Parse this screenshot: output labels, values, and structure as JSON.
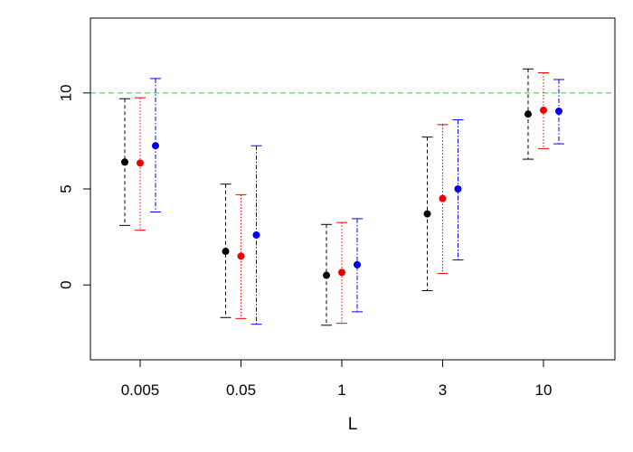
{
  "chart_data": {
    "type": "scatter",
    "title": "",
    "xlabel": "L",
    "ylabel": "",
    "categories": [
      "0.005",
      "0.05",
      "1",
      "3",
      "10"
    ],
    "ylim": [
      -3.9,
      13.9
    ],
    "yticks": [
      0,
      5,
      10
    ],
    "grid": false,
    "reference_line": {
      "y": 10,
      "color": "#33cc33",
      "style": "dashed"
    },
    "series": [
      {
        "color": "#000000",
        "line_style": "dashed",
        "points": [
          {
            "x": "0.005",
            "y": 6.4,
            "lower": 3.1,
            "upper": 9.7
          },
          {
            "x": "0.05",
            "y": 1.75,
            "lower": -1.7,
            "upper": 5.25
          },
          {
            "x": "1",
            "y": 0.5,
            "lower": -2.1,
            "upper": 3.15
          },
          {
            "x": "3",
            "y": 3.7,
            "lower": -0.3,
            "upper": 7.7
          },
          {
            "x": "10",
            "y": 8.9,
            "lower": 6.55,
            "upper": 11.25
          }
        ]
      },
      {
        "color": "#ee0000",
        "line_style": "dotted",
        "points": [
          {
            "x": "0.005",
            "y": 6.35,
            "lower": 2.85,
            "upper": 9.75
          },
          {
            "x": "0.05",
            "y": 1.5,
            "lower": -1.75,
            "upper": 4.7
          },
          {
            "x": "1",
            "y": 0.65,
            "lower": -2.0,
            "upper": 3.25
          },
          {
            "x": "3",
            "y": 4.5,
            "lower": 0.6,
            "upper": 8.35
          },
          {
            "x": "10",
            "y": 9.1,
            "lower": 7.1,
            "upper": 11.05
          }
        ]
      },
      {
        "color": "#0000ee",
        "line_style": "dashdot",
        "points": [
          {
            "x": "0.005",
            "y": 7.25,
            "lower": 3.8,
            "upper": 10.75
          },
          {
            "x": "0.05",
            "y": 2.6,
            "lower": -2.05,
            "upper": 7.25
          },
          {
            "x": "1",
            "y": 1.05,
            "lower": -1.4,
            "upper": 3.45
          },
          {
            "x": "3",
            "y": 5.0,
            "lower": 1.3,
            "upper": 8.6
          },
          {
            "x": "10",
            "y": 9.05,
            "lower": 7.35,
            "upper": 10.7
          }
        ]
      }
    ]
  }
}
